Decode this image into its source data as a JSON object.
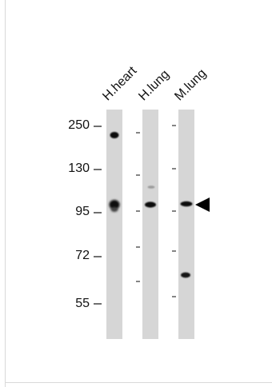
{
  "lanes": [
    "H.heart",
    "H.lung",
    "M.lung"
  ],
  "mw_markers": [
    "250",
    "130",
    "95",
    "72",
    "55"
  ]
}
